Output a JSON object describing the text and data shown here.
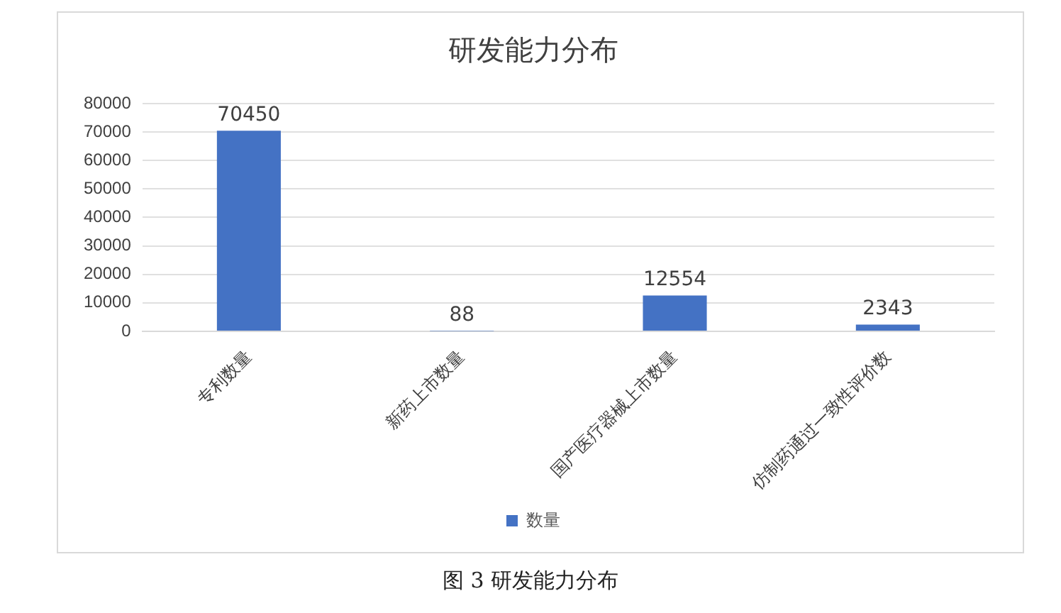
{
  "chart_data": {
    "type": "bar",
    "title": "研发能力分布",
    "categories": [
      "专利数量",
      "新药上市数量",
      "国产医疗器械上市数量",
      "仿制药通过一致性评价数"
    ],
    "series": [
      {
        "name": "数量",
        "color": "#4472c4",
        "values": [
          70450,
          88,
          12554,
          2343
        ]
      }
    ],
    "ylim": [
      0,
      80000
    ],
    "yticks": [
      0,
      10000,
      20000,
      30000,
      40000,
      50000,
      60000,
      70000,
      80000
    ],
    "grid": "y",
    "legend": "bottom",
    "data_labels": true,
    "annotations": [
      "图 3 研发能力分布"
    ]
  }
}
